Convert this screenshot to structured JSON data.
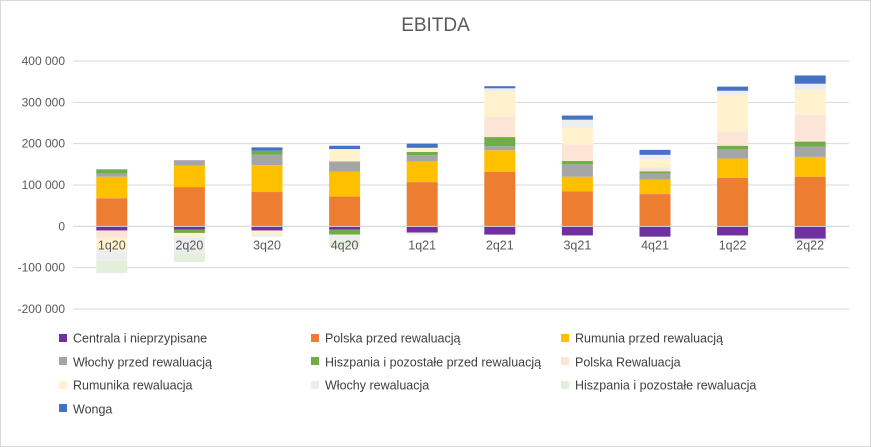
{
  "chart_data": {
    "type": "bar",
    "stacked": true,
    "title": "EBITDA",
    "xlabel": "",
    "ylabel": "",
    "ylim": [
      -200000,
      400000
    ],
    "yticks": [
      -200000,
      -100000,
      0,
      100000,
      200000,
      300000,
      400000
    ],
    "ytick_labels": [
      "-200 000",
      "-100 000",
      "0",
      "100 000",
      "200 000",
      "300 000",
      "400 000"
    ],
    "grid": true,
    "legend_position": "bottom",
    "categories": [
      "1q20",
      "2q20",
      "3q20",
      "4q20",
      "1q21",
      "2q21",
      "3q21",
      "4q21",
      "1q22",
      "2q22"
    ],
    "series": [
      {
        "name": "Centrala i nieprzypisane",
        "color": "#7030a0",
        "values": [
          -10000,
          -8000,
          -10000,
          -8000,
          -15000,
          -20000,
          -22000,
          -25000,
          -22000,
          -30000
        ]
      },
      {
        "name": "Polska przed rewaluacją",
        "color": "#ed7d31",
        "values": [
          68000,
          95000,
          83000,
          72000,
          107000,
          132000,
          85000,
          78000,
          117000,
          120000
        ]
      },
      {
        "name": "Rumunia przed rewaluacją",
        "color": "#ffc000",
        "values": [
          52000,
          52000,
          65000,
          60000,
          50000,
          52000,
          35000,
          35000,
          47000,
          48000
        ]
      },
      {
        "name": "Włochy przed rewaluacją",
        "color": "#a5a5a5",
        "values": [
          8000,
          13000,
          25000,
          25000,
          15000,
          10000,
          30000,
          15000,
          23000,
          25000
        ]
      },
      {
        "name": "Hiszpania i pozostałe przed rewaluacją",
        "color": "#70ad47",
        "values": [
          10000,
          -8000,
          10000,
          -12000,
          8000,
          22000,
          8000,
          5000,
          8000,
          12000
        ]
      },
      {
        "name": "Polska Rewaluacja",
        "color": "#fce4d6",
        "values": [
          -18000,
          0,
          0,
          0,
          0,
          50000,
          40000,
          10000,
          35000,
          65000
        ]
      },
      {
        "name": "Rumunika rewaluacja",
        "color": "#fff2cc",
        "values": [
          -30000,
          -10000,
          -10000,
          30000,
          10000,
          60000,
          40000,
          20000,
          88000,
          60000
        ]
      },
      {
        "name": "Włochy rewaluacja",
        "color": "#ededed",
        "values": [
          -25000,
          -40000,
          -5000,
          -15000,
          -5000,
          8000,
          20000,
          10000,
          10000,
          15000
        ]
      },
      {
        "name": "Hiszpania i pozostałe rewaluacja",
        "color": "#e2efda",
        "values": [
          -30000,
          -20000,
          0,
          -15000,
          0,
          0,
          0,
          0,
          0,
          -5000
        ]
      },
      {
        "name": "Wonga",
        "color": "#4472c4",
        "values": [
          0,
          0,
          8000,
          8000,
          10000,
          5000,
          10000,
          12000,
          10000,
          20000
        ]
      }
    ]
  }
}
